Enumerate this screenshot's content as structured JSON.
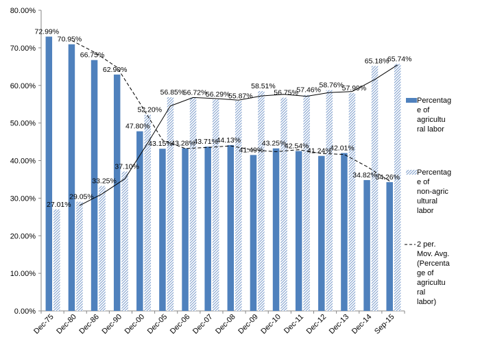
{
  "chart_data": {
    "type": "bar",
    "categories": [
      "Dec-75",
      "Dec-80",
      "Dec-86",
      "Dec-90",
      "Dec-00",
      "Dec-05",
      "Dec-06",
      "Dec-07",
      "Dec-08",
      "Dec-09",
      "Dec-10",
      "Dec-11",
      "Dec-12",
      "Dec-13",
      "Dec-14",
      "Sep-15"
    ],
    "ylim": [
      0,
      80
    ],
    "yticks": [
      0,
      10,
      20,
      30,
      40,
      50,
      60,
      70,
      80
    ],
    "ytick_labels": [
      "0.00%",
      "10.00%",
      "20.00%",
      "30.00%",
      "40.00%",
      "50.00%",
      "60.00%",
      "70.00%",
      "80.00%"
    ],
    "grid": false,
    "legend_position": "right",
    "series": [
      {
        "name": "Percentage of agricultural labor",
        "type": "bar",
        "style": "solid",
        "color": "#4f81bd",
        "values": [
          72.99,
          70.95,
          66.75,
          62.9,
          47.8,
          43.15,
          43.28,
          43.71,
          44.13,
          41.49,
          43.25,
          42.54,
          41.24,
          42.01,
          34.82,
          34.26
        ],
        "labels": [
          "72.99%",
          "70.95%",
          "66.75%",
          "62.90%",
          "47.80%",
          "43.15%",
          "43.28%",
          "43.71%",
          "44.13%",
          "41.49%",
          "43.25%",
          "42.54%",
          "41.24%",
          "42.01%",
          "34.82%",
          "34.26%"
        ]
      },
      {
        "name": "Percentage of non-agricultural labor",
        "type": "bar",
        "style": "hatched",
        "color": "#9bb7dc",
        "values": [
          27.01,
          29.05,
          33.25,
          37.1,
          52.2,
          56.85,
          56.72,
          56.29,
          55.87,
          58.51,
          56.75,
          57.46,
          58.76,
          57.99,
          65.18,
          65.74
        ],
        "labels": [
          "27.01%",
          "29.05%",
          "33.25%",
          "37.10%",
          "52.20%",
          "56.85%",
          "56.72%",
          "56.29%",
          "55.87%",
          "58.51%",
          "56.75%",
          "57.46%",
          "58.76%",
          "57.99%",
          "65.18%",
          "65.74%"
        ]
      }
    ],
    "trendlines": [
      {
        "name": "2 per. Mov. Avg. (Percentage of agricultural labor)",
        "period": 2,
        "source_series": 0,
        "style": "dashed",
        "color": "#000000"
      },
      {
        "period": 2,
        "source_series": 1,
        "style": "solid",
        "color": "#000000"
      }
    ],
    "legend": [
      {
        "label": "Percentage of agricultural labor",
        "swatch": "solid"
      },
      {
        "label": "Percentage of non-agricultural labor",
        "swatch": "hatched"
      },
      {
        "label": "2 per. Mov. Avg. (Percentage of agricultural labor)",
        "swatch": "dashed-line"
      }
    ]
  }
}
